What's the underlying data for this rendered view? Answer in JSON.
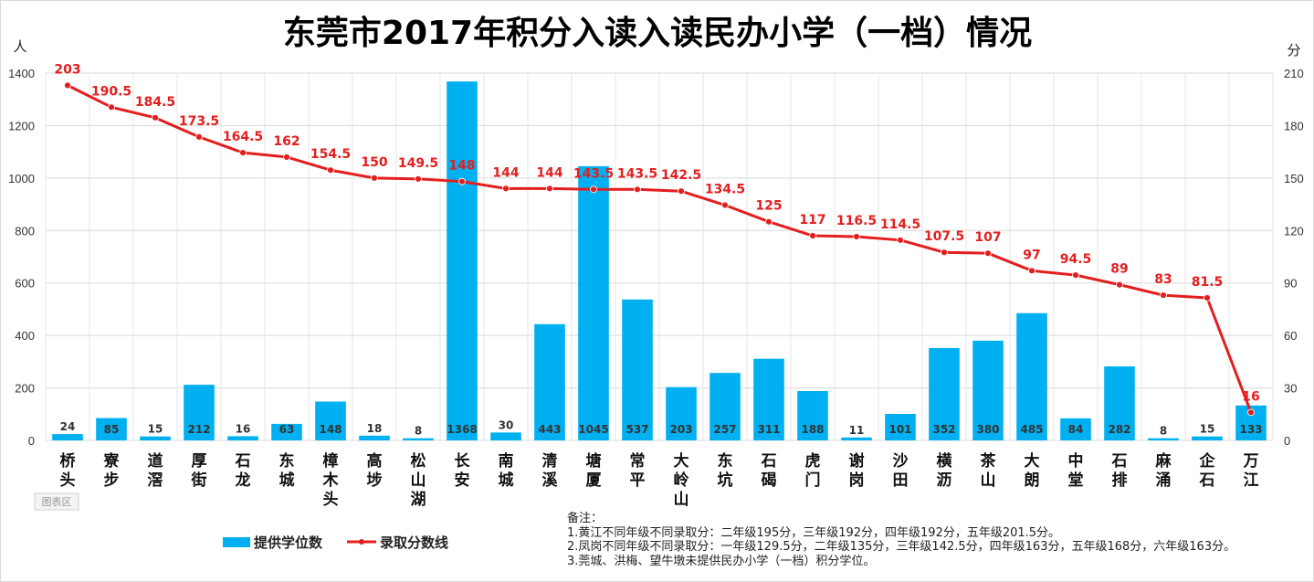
{
  "chart_data": {
    "type": "bar",
    "title": "东莞市2017年积分入读入读民办小学（一档）情况",
    "ylabel": "人",
    "y2label": "分",
    "ylim": [
      0,
      1400
    ],
    "y2lim": [
      0,
      210
    ],
    "yticks": [
      0,
      200,
      400,
      600,
      800,
      1000,
      1200,
      1400
    ],
    "y2ticks": [
      0,
      30,
      60,
      90,
      120,
      150,
      180,
      210
    ],
    "grid": true,
    "legend_position": "bottom-left",
    "categories": [
      "桥头",
      "寮步",
      "道滘",
      "厚街",
      "石龙",
      "东城",
      "樟木头",
      "高埗",
      "松山湖",
      "长安",
      "南城",
      "清溪",
      "塘厦",
      "常平",
      "大岭山",
      "东坑",
      "石碣",
      "虎门",
      "谢岗",
      "沙田",
      "横沥",
      "茶山",
      "大朗",
      "中堂",
      "石排",
      "麻涌",
      "企石",
      "万江"
    ],
    "series": [
      {
        "name": "提供学位数",
        "type": "bar",
        "axis": "left",
        "color": "#00b0f0",
        "values": [
          24,
          85,
          15,
          212,
          16,
          63,
          148,
          18,
          8,
          1368,
          30,
          443,
          1045,
          537,
          203,
          257,
          311,
          188,
          11,
          101,
          352,
          380,
          485,
          84,
          282,
          8,
          15,
          133
        ]
      },
      {
        "name": "录取分数线",
        "type": "line",
        "axis": "right",
        "color": "#e41e1e",
        "values": [
          203,
          190.5,
          184.5,
          173.5,
          164.5,
          162,
          154.5,
          150,
          149.5,
          148,
          144,
          144,
          143.5,
          143.5,
          142.5,
          134.5,
          125,
          117,
          116.5,
          114.5,
          107.5,
          107,
          97,
          94.5,
          89,
          83,
          81.5,
          16
        ]
      }
    ],
    "notes": [
      "备注：",
      "1.黄江不同年级不同录取分：二年级195分，三年级192分，四年级192分，五年级201.5分。",
      "2.凤岗不同年级不同录取分：一年级129.5分，二年级135分，三年级142.5分，四年级163分，五年级168分，六年级163分。",
      "3.莞城、洪梅、望牛墩未提供民办小学（一档）积分学位。"
    ],
    "area_tag": "图表区"
  }
}
